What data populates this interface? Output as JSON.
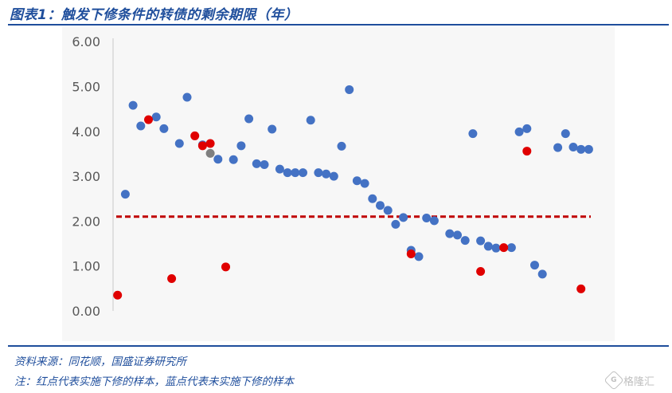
{
  "header": {
    "title": "图表1：触发下修条件的转债的剩余期限（年）"
  },
  "footer": {
    "source": "资料来源：同花顺，国盛证券研究所",
    "note": "注：红点代表实施下修的样本，蓝点代表未实施下修的样本"
  },
  "watermark": {
    "logo_text": "G",
    "text": "格隆汇"
  },
  "colors": {
    "blue": "#4472c4",
    "red": "#e00000",
    "gray": "#7f7f7f",
    "refline": "#c00000",
    "text": "#1f4e9c"
  },
  "chart_data": {
    "type": "scatter",
    "title": "",
    "xlabel": "",
    "ylabel": "",
    "ylim": [
      0,
      6
    ],
    "y_ticks": [
      "0.00",
      "1.00",
      "2.00",
      "3.00",
      "4.00",
      "5.00",
      "6.00"
    ],
    "grid": false,
    "legend": "none",
    "reference_line": {
      "y": 2.1,
      "style": "dashed",
      "color": "#c00000"
    },
    "series": [
      {
        "color": "#4472c4",
        "x": [
          2,
          3,
          4,
          6,
          7,
          9,
          10,
          12,
          14,
          16,
          17,
          18,
          19,
          20,
          21,
          22,
          23,
          24,
          25,
          26,
          27,
          28,
          29,
          30,
          31,
          32,
          33,
          34,
          35,
          36,
          37,
          38,
          39,
          40,
          41,
          42,
          44,
          45,
          46,
          47,
          48,
          49,
          50,
          52,
          53,
          54,
          55,
          56,
          58,
          59,
          60,
          61,
          62
        ],
        "y": [
          2.6,
          4.58,
          4.12,
          4.32,
          4.06,
          3.73,
          4.76,
          3.7,
          3.38,
          3.37,
          3.68,
          4.28,
          3.28,
          3.26,
          4.05,
          3.16,
          3.08,
          3.08,
          3.08,
          4.25,
          3.08,
          3.05,
          3.0,
          3.67,
          4.93,
          2.9,
          2.84,
          2.5,
          2.35,
          2.24,
          1.93,
          2.08,
          1.35,
          1.21,
          2.07,
          2.01,
          1.72,
          1.69,
          1.57,
          3.95,
          1.56,
          1.44,
          1.4,
          1.41,
          3.99,
          4.06,
          1.02,
          0.82,
          3.64,
          3.95,
          3.65,
          3.6,
          3.6
        ]
      },
      {
        "color": "#e00000",
        "x": [
          1,
          5,
          8,
          11,
          13,
          15,
          39,
          48,
          51,
          54
        ],
        "y": [
          0.35,
          4.26,
          0.72,
          3.9,
          3.73,
          0.98,
          1.27,
          0.88,
          1.41,
          3.56
        ]
      },
      {
        "color": "#e00000",
        "x": [
          12,
          61
        ],
        "y": [
          3.68,
          0.49
        ]
      },
      {
        "color": "#7f7f7f",
        "x": [
          13
        ],
        "y": [
          3.51
        ]
      }
    ]
  }
}
